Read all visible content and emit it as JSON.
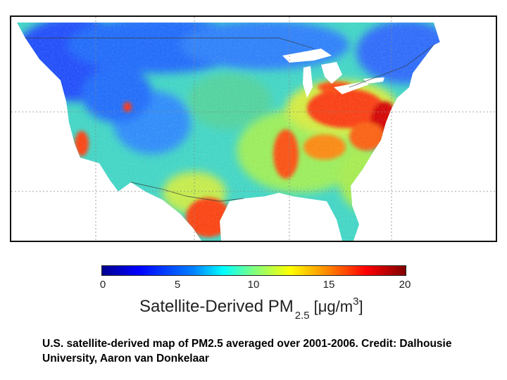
{
  "map": {
    "region": "Contiguous United States",
    "variable": "PM2.5",
    "colors": {
      "low": "#0000ff",
      "mid": "#00ffff",
      "midhigh": "#ffff00",
      "high": "#ff0000",
      "max": "#800000",
      "background": "#ffffff"
    }
  },
  "colorbar": {
    "ticks": [
      "0",
      "5",
      "10",
      "15",
      "20"
    ],
    "min": 0,
    "max": 20,
    "title_main": "Satellite-Derived PM",
    "title_sub": "2.5",
    "unit_open": "[",
    "unit_mu": "μ",
    "unit_main": "g/m",
    "unit_sup": "3",
    "unit_close": "]"
  },
  "caption": "U.S. satellite-derived map of PM2.5 averaged over 2001-2006. Credit: Dalhousie University, Aaron van Donkelaar"
}
